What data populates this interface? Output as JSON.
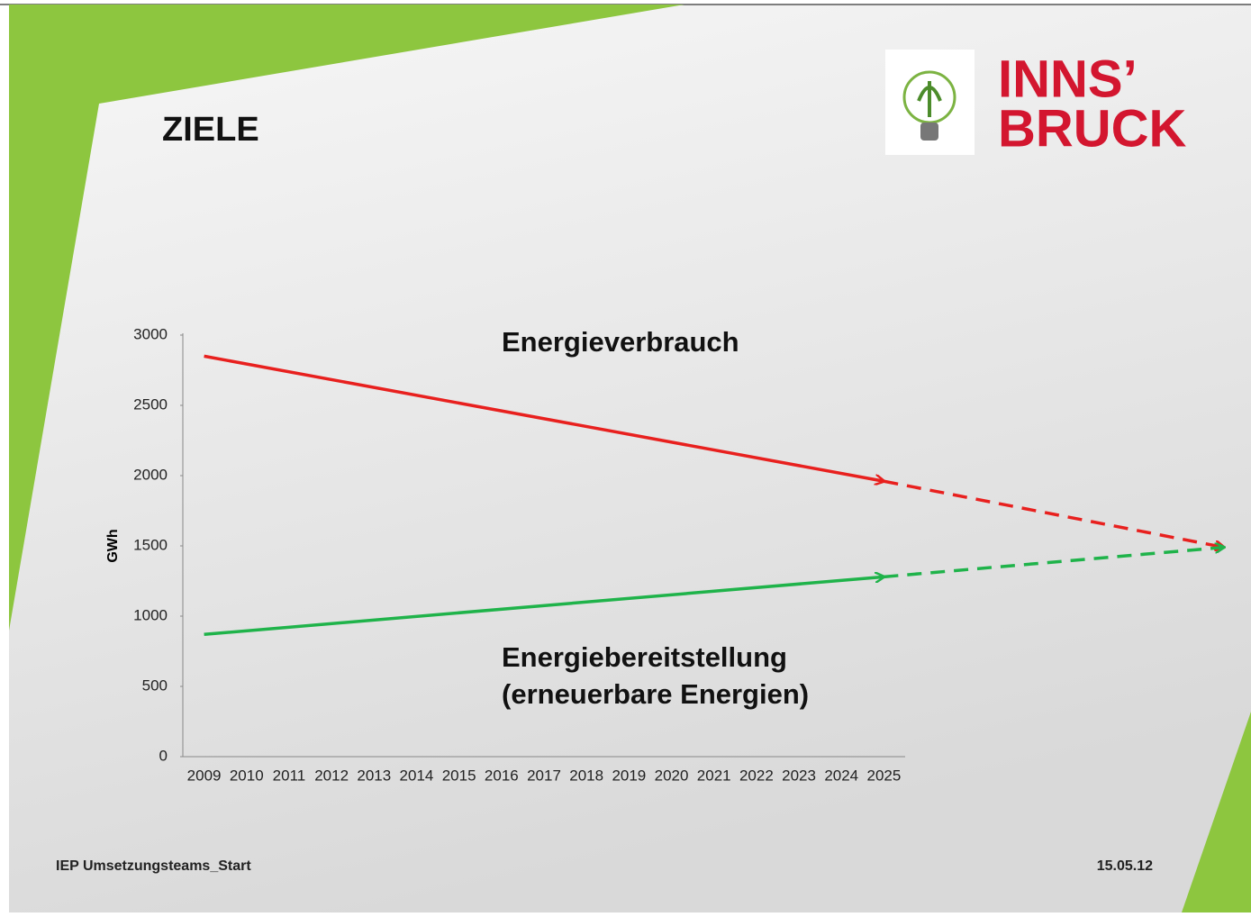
{
  "header": {
    "title": "ZIELE",
    "logo_line1": "INNS’",
    "logo_line2": "BRUCK"
  },
  "chart_data": {
    "type": "line",
    "ylabel": "GWh",
    "categories": [
      "2009",
      "2010",
      "2011",
      "2012",
      "2013",
      "2014",
      "2015",
      "2016",
      "2017",
      "2018",
      "2019",
      "2020",
      "2021",
      "2022",
      "2023",
      "2024",
      "2025"
    ],
    "ylim": [
      0,
      3000
    ],
    "yticks": [
      0,
      500,
      1000,
      1500,
      2000,
      2500,
      3000
    ],
    "series": [
      {
        "name": "Energieverbrauch",
        "color": "#e8201e",
        "x": [
          2009,
          2025
        ],
        "values": [
          2850,
          1960
        ],
        "projection": {
          "x": 2033,
          "value": 1490
        }
      },
      {
        "name": "Energiebereitstellung",
        "name_note": "(erneuerbare Energien)",
        "color": "#1fb34a",
        "x": [
          2009,
          2025
        ],
        "values": [
          870,
          1280
        ],
        "projection": {
          "x": 2033,
          "value": 1490
        }
      }
    ]
  },
  "footer": {
    "left": "IEP Umsetzungsteams_Start",
    "right": "15.05.12"
  }
}
